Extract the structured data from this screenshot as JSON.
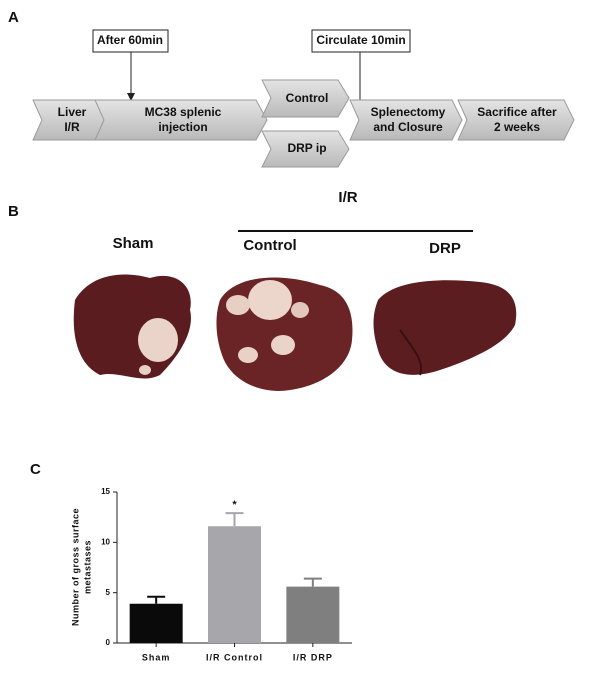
{
  "diagram": {
    "panel": "A",
    "steps": [
      [
        "Liver",
        "I/R"
      ],
      [
        "MC38 splenic",
        "injection"
      ],
      [
        "Control"
      ],
      [
        "DRP ip"
      ],
      [
        "Splenectomy",
        "and Closure"
      ],
      [
        "Sacrifice after",
        "2 weeks"
      ]
    ],
    "notes": [
      "After 60min",
      "Circulate 10min"
    ]
  },
  "photos": {
    "panel": "B",
    "group": "I/R",
    "labels": [
      "Sham",
      "Control",
      "DRP"
    ]
  },
  "chart_data": {
    "type": "bar",
    "panel": "C",
    "ylabel": [
      "Number of gross surface",
      "metastases"
    ],
    "categories": [
      "Sham",
      "I/R Control",
      "I/R DRP"
    ],
    "values": [
      3.9,
      11.6,
      5.6
    ],
    "errors": [
      0.7,
      1.3,
      0.8
    ],
    "colors": [
      "#0a0a0a",
      "#a6a6ab",
      "#7f7f7f"
    ],
    "ylim": [
      0,
      15
    ],
    "yticks": [
      0,
      5,
      10,
      15
    ],
    "annotation": "*"
  }
}
